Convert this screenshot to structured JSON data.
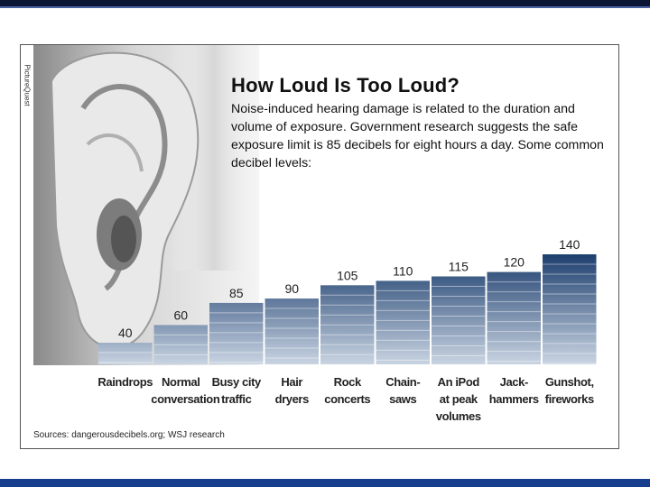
{
  "credit": "PictureQuest",
  "source": "Sources: dangerousdecibels.org; WSJ research",
  "chart_data": {
    "type": "bar",
    "title": "How Loud Is Too Loud?",
    "subtitle": "Noise-induced hearing damage is related to the duration and volume of exposure. Government research suggests the safe exposure limit is 85 decibels for eight hours a day. Some common decibel levels:",
    "categories": [
      "Raindrops",
      "Normal conversation",
      "Busy city traffic",
      "Hair dryers",
      "Rock concerts",
      "Chain-saws",
      "An iPod at peak volumes",
      "Jack-hammers",
      "Gunshot, fireworks"
    ],
    "category_lines": [
      [
        "Raindrops"
      ],
      [
        "Normal",
        "conversation"
      ],
      [
        "Busy city",
        "traffic"
      ],
      [
        "Hair",
        "dryers"
      ],
      [
        "Rock",
        "concerts"
      ],
      [
        "Chain-",
        "saws"
      ],
      [
        "An iPod",
        "at peak",
        "volumes"
      ],
      [
        "Jack-",
        "hammers"
      ],
      [
        "Gunshot,",
        "fireworks"
      ]
    ],
    "values": [
      40,
      60,
      85,
      90,
      105,
      110,
      115,
      120,
      140
    ],
    "data_labels": [
      "40",
      "60",
      "85",
      "90",
      "105",
      "110",
      "115",
      "120",
      "140"
    ],
    "ylim": [
      0,
      140
    ],
    "grid": false,
    "colors": {
      "bar_top": "#1d3f6e",
      "bar_light": "#c9d4e2",
      "bar_border": "#ffffff"
    }
  }
}
